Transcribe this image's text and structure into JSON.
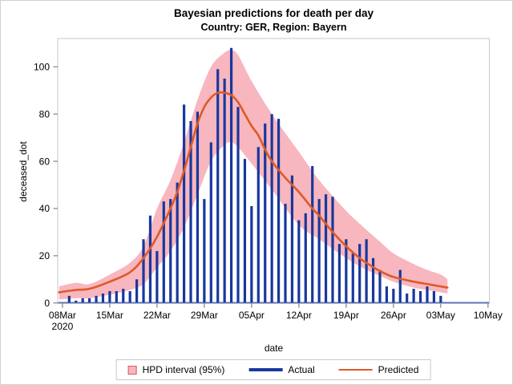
{
  "colors": {
    "actual_blue": "#17389E",
    "predicted_orange": "#DD5A28",
    "band_pink": "#F8B6BE",
    "band_swatch_border": "#D8596B",
    "frame_gray": "#C8C8C8",
    "tick_gray": "#8C8C8C",
    "text_black": "#000000",
    "baseline_blue": "#2A4BB5"
  },
  "legend": {
    "hpd_label": "HPD interval (95%)",
    "actual_label": "Actual",
    "predicted_label": "Predicted"
  },
  "chart_data": {
    "type": "bar",
    "title": "Bayesian predictions for death per day",
    "subtitle": "Country: GER, Region: Bayern",
    "xlabel": "date",
    "ylabel": "deceased_dot",
    "ylim": [
      0,
      112
    ],
    "grid": "off",
    "legend_position": "bottom-center",
    "y_ticks": [
      0,
      20,
      40,
      60,
      80,
      100
    ],
    "x_ticks": {
      "days": [
        0,
        7,
        14,
        21,
        28,
        35,
        42,
        49,
        56,
        63
      ],
      "labels": [
        "08Mar",
        "15Mar",
        "22Mar",
        "29Mar",
        "05Apr",
        "12Apr",
        "19Apr",
        "26Apr",
        "03May",
        "10May"
      ],
      "year_label": "2020",
      "year_under_label": "08Mar"
    },
    "series": [
      {
        "name": "HPD interval (95%)",
        "type": "band",
        "points_day_lower_upper": [
          [
            -0.5,
            1.5,
            7
          ],
          [
            2,
            2,
            8.5
          ],
          [
            4,
            2,
            8
          ],
          [
            7,
            3.5,
            12
          ],
          [
            10,
            5.5,
            17
          ],
          [
            12,
            8,
            24
          ],
          [
            14,
            15,
            40
          ],
          [
            16,
            22,
            52
          ],
          [
            18,
            32,
            68
          ],
          [
            20,
            46,
            86
          ],
          [
            22,
            60,
            100
          ],
          [
            24,
            67,
            106
          ],
          [
            25,
            68,
            107
          ],
          [
            26,
            66,
            105
          ],
          [
            28,
            59,
            94
          ],
          [
            31,
            48,
            80
          ],
          [
            35,
            33,
            64
          ],
          [
            38,
            27,
            52
          ],
          [
            42,
            19,
            39
          ],
          [
            45,
            14,
            31
          ],
          [
            47,
            11.5,
            26
          ],
          [
            49,
            9,
            21
          ],
          [
            52,
            6.5,
            16.5
          ],
          [
            54,
            5.5,
            14
          ],
          [
            56,
            4.5,
            12
          ],
          [
            57,
            4,
            10
          ]
        ]
      },
      {
        "name": "Actual",
        "type": "needle",
        "start_day": 1,
        "dates": [
          "09Mar",
          "10Mar",
          "11Mar",
          "12Mar",
          "13Mar",
          "14Mar",
          "15Mar",
          "16Mar",
          "17Mar",
          "18Mar",
          "19Mar",
          "20Mar",
          "21Mar",
          "22Mar",
          "23Mar",
          "24Mar",
          "25Mar",
          "26Mar",
          "27Mar",
          "28Mar",
          "29Mar",
          "30Mar",
          "31Mar",
          "01Apr",
          "02Apr",
          "03Apr",
          "04Apr",
          "05Apr",
          "06Apr",
          "07Apr",
          "08Apr",
          "09Apr",
          "10Apr",
          "11Apr",
          "12Apr",
          "13Apr",
          "14Apr",
          "15Apr",
          "16Apr",
          "17Apr",
          "18Apr",
          "19Apr",
          "20Apr",
          "21Apr",
          "22Apr",
          "23Apr",
          "24Apr",
          "25Apr",
          "26Apr",
          "27Apr",
          "28Apr",
          "29Apr",
          "30Apr",
          "01May",
          "02May",
          "03May"
        ],
        "values": [
          3,
          1,
          2,
          2,
          3,
          4,
          5,
          5,
          6,
          5,
          10,
          27,
          37,
          22,
          43,
          44,
          51,
          84,
          77,
          81,
          44,
          68,
          99,
          95,
          108,
          83,
          61,
          41,
          66,
          76,
          80,
          78,
          42,
          54,
          35,
          38,
          58,
          44,
          46,
          45,
          25,
          27,
          21,
          25,
          27,
          19,
          14,
          7,
          6,
          14,
          4,
          6,
          5,
          7,
          5,
          3
        ]
      },
      {
        "name": "Predicted",
        "type": "line",
        "points_day_value": [
          [
            -0.5,
            4.5
          ],
          [
            2,
            5.5
          ],
          [
            4,
            6
          ],
          [
            7,
            9
          ],
          [
            10,
            13
          ],
          [
            12,
            19
          ],
          [
            14,
            28
          ],
          [
            16,
            40
          ],
          [
            17,
            47
          ],
          [
            18,
            56
          ],
          [
            19,
            66
          ],
          [
            20,
            76
          ],
          [
            21,
            83
          ],
          [
            22,
            87
          ],
          [
            23,
            89
          ],
          [
            24,
            89
          ],
          [
            25,
            88
          ],
          [
            26,
            85
          ],
          [
            27,
            80
          ],
          [
            28,
            75
          ],
          [
            29,
            71
          ],
          [
            30,
            65
          ],
          [
            31,
            60
          ],
          [
            33,
            53
          ],
          [
            35,
            47
          ],
          [
            37,
            40
          ],
          [
            38,
            37
          ],
          [
            40,
            30
          ],
          [
            42,
            24
          ],
          [
            44,
            19
          ],
          [
            45,
            17
          ],
          [
            47,
            13.5
          ],
          [
            49,
            11
          ],
          [
            52,
            9
          ],
          [
            54,
            8
          ],
          [
            56,
            7
          ],
          [
            57,
            6.5
          ]
        ]
      }
    ]
  }
}
